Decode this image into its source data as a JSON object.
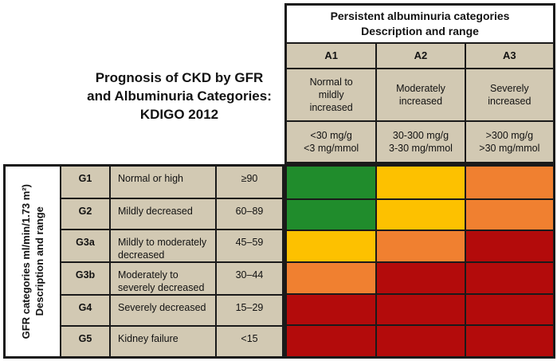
{
  "title": "Prognosis of CKD by GFR\nand Albuminuria Categories:\nKDIGO 2012",
  "albuminuria_header": {
    "line1": "Persistent albuminuria categories",
    "line2": "Description and range"
  },
  "albuminuria_categories": [
    {
      "code": "A1",
      "description": "Normal to\nmildly\nincreased",
      "range": "<30 mg/g\n<3 mg/mmol"
    },
    {
      "code": "A2",
      "description": "Moderately\nincreased",
      "range": "30-300 mg/g\n3-30 mg/mmol"
    },
    {
      "code": "A3",
      "description": "Severely\nincreased",
      "range": ">300 mg/g\n>30 mg/mmol"
    }
  ],
  "gfr_header": {
    "line1": "GFR categories ml/min/1.73 m²)",
    "line2": "Description and range"
  },
  "gfr_categories": [
    {
      "code": "G1",
      "description": "Normal or high",
      "range": "≥90"
    },
    {
      "code": "G2",
      "description": "Mildly decreased",
      "range": "60–89"
    },
    {
      "code": "G3a",
      "description": "Mildly to moderately decreased",
      "range": "45–59"
    },
    {
      "code": "G3b",
      "description": "Moderately to severely decreased",
      "range": "30–44"
    },
    {
      "code": "G4",
      "description": "Severely decreased",
      "range": "15–29"
    },
    {
      "code": "G5",
      "description": "Kidney failure",
      "range": "<15"
    }
  ],
  "risk_colors": {
    "green": "#208c2c",
    "yellow": "#fdc100",
    "orange": "#f08030",
    "red": "#b30b0b"
  },
  "panel_colors": {
    "header_beige": "#d2c9b3",
    "border_black": "#1a1a1a",
    "background": "#ffffff"
  },
  "chart_data": {
    "type": "heatmap",
    "title": "Prognosis of CKD by GFR and Albuminuria Categories: KDIGO 2012",
    "rows": [
      "G1",
      "G2",
      "G3a",
      "G3b",
      "G4",
      "G5"
    ],
    "row_descriptions": [
      "Normal or high",
      "Mildly decreased",
      "Mildly to moderately decreased",
      "Moderately to severely decreased",
      "Severely decreased",
      "Kidney failure"
    ],
    "row_ranges": [
      "≥90",
      "60–89",
      "45–59",
      "30–44",
      "15–29",
      "<15"
    ],
    "row_axis_label": "GFR categories ml/min/1.73 m²) Description and range",
    "columns": [
      "A1",
      "A2",
      "A3"
    ],
    "column_descriptions": [
      "Normal to mildly increased",
      "Moderately increased",
      "Severely increased"
    ],
    "column_ranges": [
      "<30 mg/g <3 mg/mmol",
      "30-300 mg/g 3-30 mg/mmol",
      ">300 mg/g >30 mg/mmol"
    ],
    "column_axis_label": "Persistent albuminuria categories Description and range",
    "risk_matrix": [
      [
        "green",
        "yellow",
        "orange"
      ],
      [
        "green",
        "yellow",
        "orange"
      ],
      [
        "yellow",
        "orange",
        "red"
      ],
      [
        "orange",
        "red",
        "red"
      ],
      [
        "red",
        "red",
        "red"
      ],
      [
        "red",
        "red",
        "red"
      ]
    ],
    "legend_position": "none",
    "grid": true
  }
}
